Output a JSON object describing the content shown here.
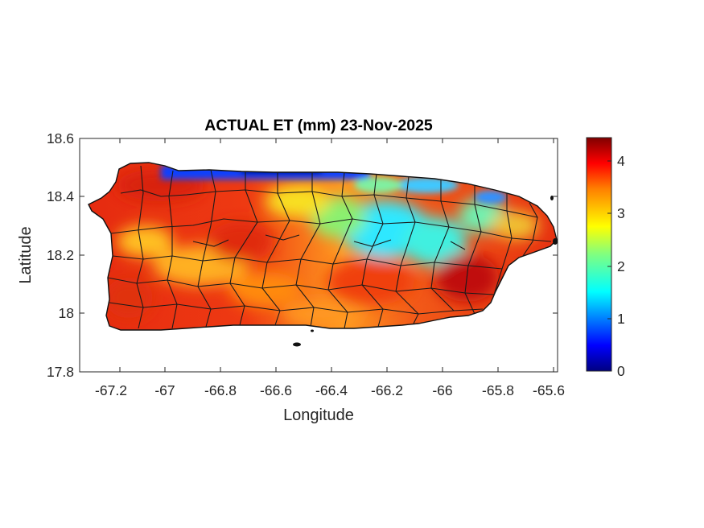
{
  "title": "ACTUAL ET (mm) 23-Nov-2025",
  "map": {
    "xlabel": "Longitude",
    "ylabel": "Latitude",
    "xlim": [
      -67.3,
      -65.58
    ],
    "ylim": [
      17.8,
      18.6
    ],
    "xticks": [
      "-67.2",
      "-67",
      "-66.8",
      "-66.6",
      "-66.4",
      "-66.2",
      "-66",
      "-65.8",
      "-65.6"
    ],
    "yticks": [
      "18.6",
      "18.4",
      "18.2",
      "18",
      "17.8"
    ],
    "box": true,
    "grid": false
  },
  "colorbar": {
    "colormap": "jet",
    "range": [
      0,
      4.45
    ],
    "ticks": [
      "4",
      "3",
      "2",
      "1",
      "0"
    ],
    "colors": [
      "#000080",
      "#0000ff",
      "#0080ff",
      "#00ffff",
      "#80ff80",
      "#ffff00",
      "#ff8000",
      "#ff0000",
      "#800000"
    ]
  },
  "field_summary": {
    "dominant_range_mm": [
      3,
      4.4
    ],
    "low_values_mm": [
      0,
      2
    ],
    "low_value_areas": [
      "north coast",
      "north-central interior"
    ]
  }
}
